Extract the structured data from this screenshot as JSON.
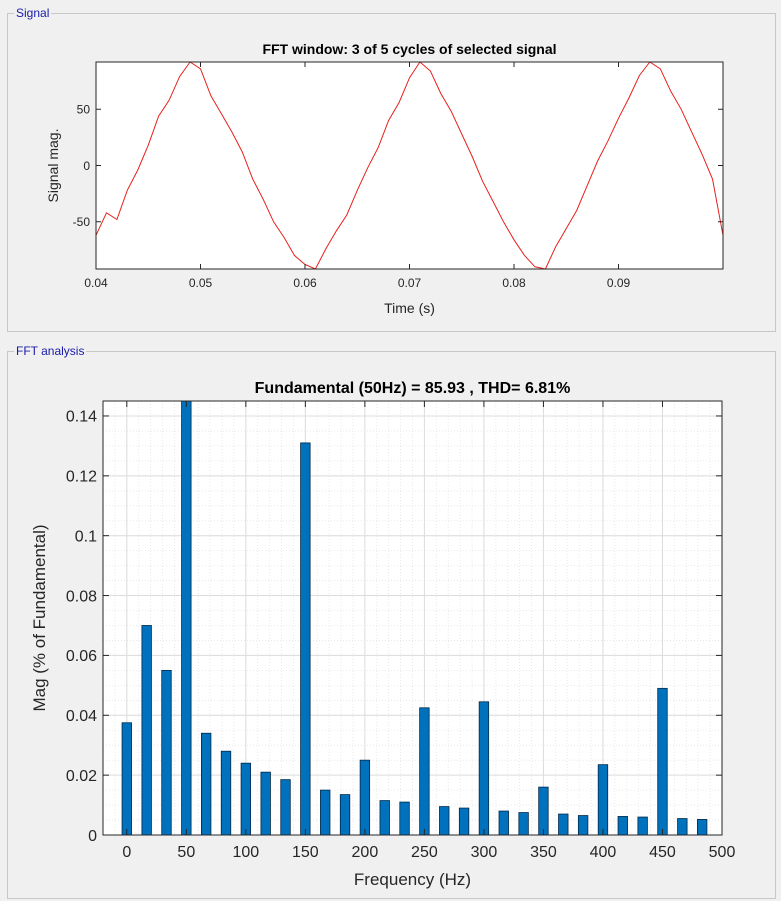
{
  "panels": {
    "signal_label": "Signal",
    "fft_label": "FFT analysis"
  },
  "colors": {
    "signal_line": "#e8201c",
    "bar_fill": "#0072bd",
    "bar_stroke": "#00294a",
    "panel_label": "#1a1aa6"
  },
  "chart_data": [
    {
      "type": "line",
      "title": "FFT window: 3 of 5 cycles of selected signal",
      "xlabel": "Time (s)",
      "ylabel": "Signal mag.",
      "xlim": [
        0.04,
        0.1
      ],
      "ylim": [
        -92,
        92
      ],
      "xticks": [
        0.04,
        0.05,
        0.06,
        0.07,
        0.08,
        0.09
      ],
      "xtick_labels": [
        "0.04",
        "0.05",
        "0.06",
        "0.07",
        "0.08",
        "0.09"
      ],
      "yticks": [
        -50,
        0,
        50
      ],
      "ytick_labels": [
        "-50",
        "0",
        "50"
      ],
      "grid": false,
      "series": [
        {
          "x": [
            0.04,
            0.041,
            0.042,
            0.043,
            0.044,
            0.045,
            0.046,
            0.047,
            0.048,
            0.049,
            0.05,
            0.051,
            0.052,
            0.053,
            0.054,
            0.055,
            0.056,
            0.057,
            0.058,
            0.059,
            0.06,
            0.061,
            0.062,
            0.063,
            0.064,
            0.065,
            0.066,
            0.067,
            0.068,
            0.069,
            0.07,
            0.071,
            0.072,
            0.073,
            0.074,
            0.075,
            0.076,
            0.077,
            0.078,
            0.079,
            0.08,
            0.081,
            0.082,
            0.083,
            0.084,
            0.085,
            0.086,
            0.087,
            0.088,
            0.089,
            0.09,
            0.091,
            0.092,
            0.093,
            0.094,
            0.095,
            0.096,
            0.097,
            0.098,
            0.099,
            0.1
          ],
          "y": [
            -62,
            -42,
            -48,
            -22,
            -4,
            18,
            44,
            58,
            79,
            92,
            86,
            62,
            46,
            30,
            12,
            -12,
            -30,
            -50,
            -64,
            -80,
            -88,
            -92,
            -74,
            -58,
            -44,
            -22,
            -2,
            16,
            40,
            56,
            78,
            92,
            84,
            64,
            48,
            28,
            8,
            -14,
            -32,
            -50,
            -66,
            -80,
            -90,
            -92,
            -72,
            -56,
            -40,
            -18,
            4,
            22,
            42,
            60,
            80,
            92,
            86,
            66,
            50,
            30,
            10,
            -12,
            -62
          ]
        }
      ]
    },
    {
      "type": "bar",
      "title": "Fundamental (50Hz) = 85.93 , THD= 6.81%",
      "xlabel": "Frequency (Hz)",
      "ylabel": "Mag (% of Fundamental)",
      "xlim": [
        -20,
        500
      ],
      "ylim": [
        0,
        0.145
      ],
      "xticks": [
        0,
        50,
        100,
        150,
        200,
        250,
        300,
        350,
        400,
        450,
        500
      ],
      "xtick_labels": [
        "0",
        "50",
        "100",
        "150",
        "200",
        "250",
        "300",
        "350",
        "400",
        "450",
        "500"
      ],
      "yticks": [
        0,
        0.02,
        0.04,
        0.06,
        0.08,
        0.1,
        0.12,
        0.14
      ],
      "ytick_labels": [
        "0",
        "0.02",
        "0.04",
        "0.06",
        "0.08",
        "0.1",
        "0.12",
        "0.14"
      ],
      "grid": true,
      "bar_width": 8,
      "x": [
        0,
        16.67,
        33.33,
        50,
        66.67,
        83.33,
        100,
        116.67,
        133.33,
        150,
        166.67,
        183.33,
        200,
        216.67,
        233.33,
        250,
        266.67,
        283.33,
        300,
        316.67,
        333.33,
        350,
        366.67,
        383.33,
        400,
        416.67,
        433.33,
        450,
        466.67,
        483.33
      ],
      "values": [
        0.0375,
        0.07,
        0.055,
        0.145,
        0.034,
        0.028,
        0.024,
        0.021,
        0.0185,
        0.131,
        0.015,
        0.0135,
        0.025,
        0.0115,
        0.011,
        0.0425,
        0.0095,
        0.009,
        0.0445,
        0.008,
        0.0075,
        0.016,
        0.007,
        0.0065,
        0.0235,
        0.0062,
        0.006,
        0.049,
        0.0055,
        0.0052
      ]
    }
  ]
}
